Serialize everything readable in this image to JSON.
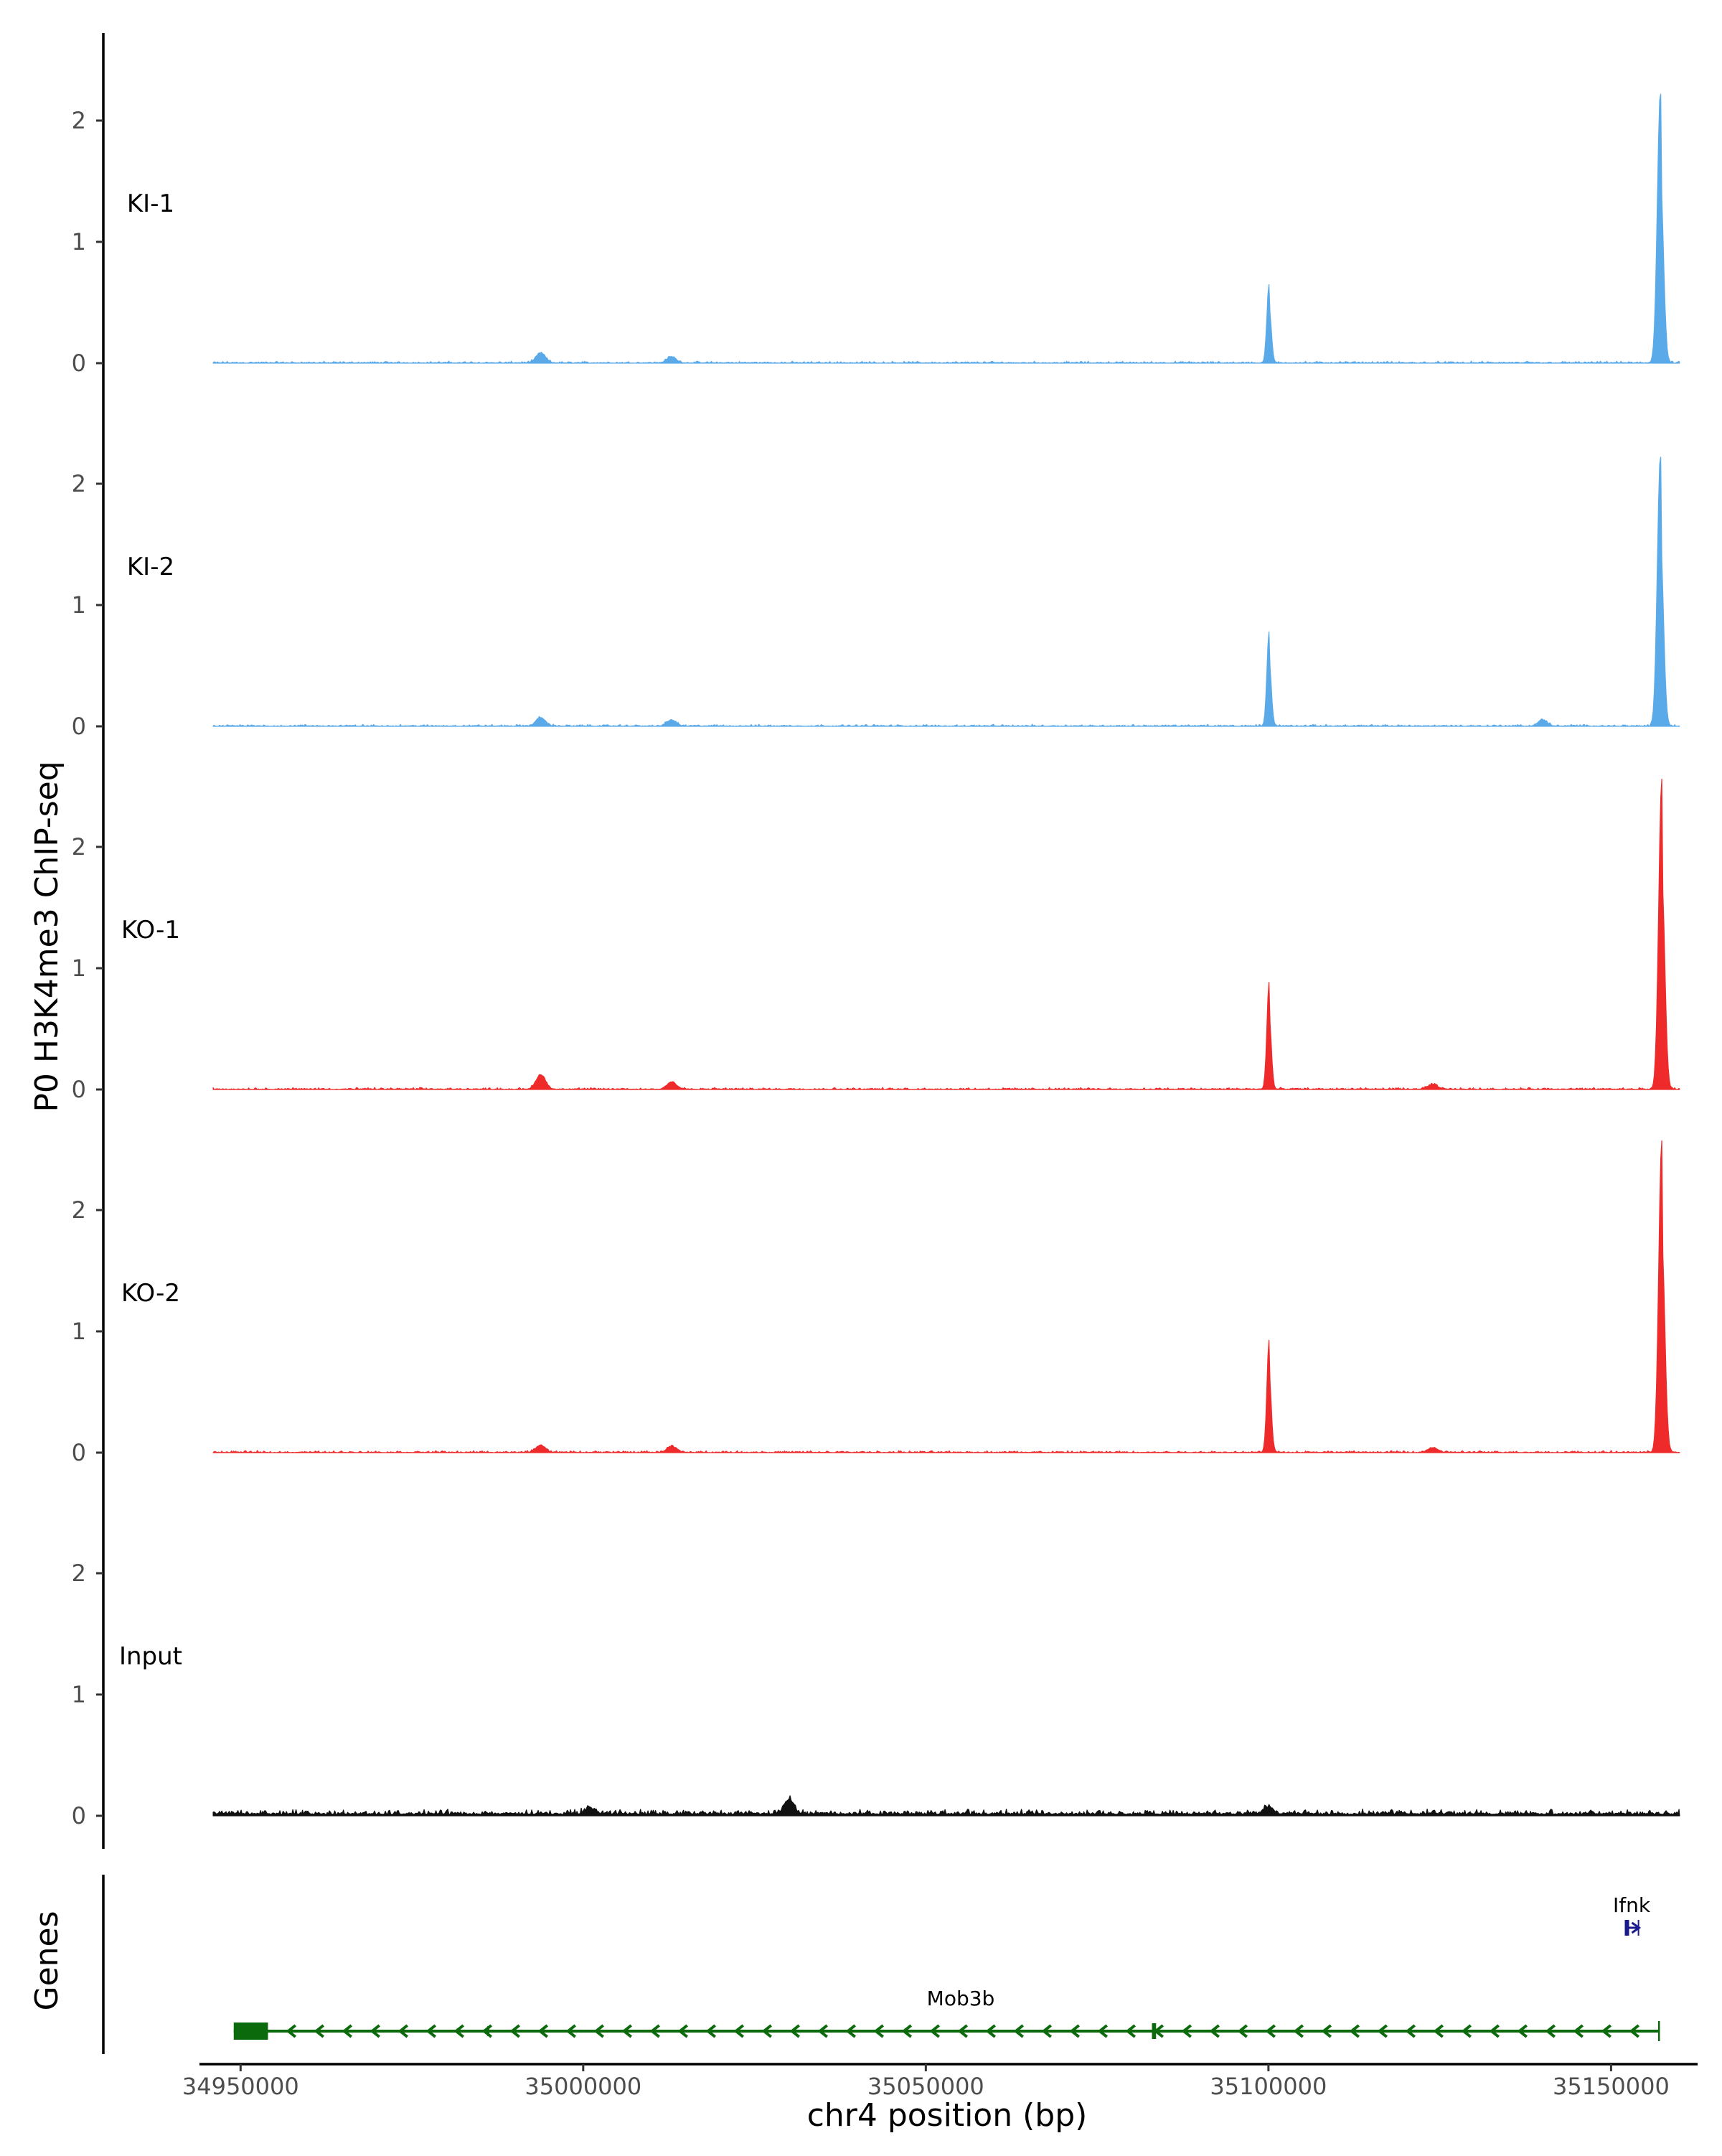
{
  "chart_data": {
    "type": "area",
    "ylabel": "P0 H3K4me3 ChIP-seq",
    "xlabel": "chr4 position (bp)",
    "xlim": [
      34944000,
      35162000
    ],
    "x_ticks": [
      34950000,
      35000000,
      35050000,
      35100000,
      35150000
    ],
    "x_tick_labels": [
      "34950000",
      "35000000",
      "35050000",
      "35100000",
      "35150000"
    ],
    "ylim": [
      0,
      2.7
    ],
    "y_ticks": [
      0,
      1,
      2
    ],
    "y_tick_labels": [
      "0",
      "1",
      "2"
    ],
    "colors": {
      "KI": "#5aaaea",
      "KO": "#ee2a2a",
      "Input": "#111111",
      "gene_mob3b": "#0b6a0b",
      "gene_ifnk": "#1a1a8c"
    },
    "tracks": [
      {
        "name": "KI-1",
        "color": "#5aaaea",
        "region": [
          34946000,
          35160000
        ],
        "peaks": [
          {
            "pos": 35157200,
            "height": 2.23
          },
          {
            "pos": 35100100,
            "height": 0.65
          },
          {
            "pos": 34993800,
            "height": 0.08
          },
          {
            "pos": 35012900,
            "height": 0.05
          }
        ]
      },
      {
        "name": "KI-2",
        "color": "#5aaaea",
        "region": [
          34946000,
          35160000
        ],
        "peaks": [
          {
            "pos": 35157200,
            "height": 2.23
          },
          {
            "pos": 35100100,
            "height": 0.78
          },
          {
            "pos": 34993800,
            "height": 0.07
          },
          {
            "pos": 35012900,
            "height": 0.05
          },
          {
            "pos": 35140000,
            "height": 0.05
          }
        ]
      },
      {
        "name": "KO-1",
        "color": "#ee2a2a",
        "region": [
          34946000,
          35160000
        ],
        "peaks": [
          {
            "pos": 35157400,
            "height": 2.55
          },
          {
            "pos": 35100100,
            "height": 0.88
          },
          {
            "pos": 34993800,
            "height": 0.12
          },
          {
            "pos": 35012900,
            "height": 0.06
          },
          {
            "pos": 35124000,
            "height": 0.04
          }
        ]
      },
      {
        "name": "KO-2",
        "color": "#ee2a2a",
        "region": [
          34946000,
          35160000
        ],
        "peaks": [
          {
            "pos": 35157400,
            "height": 2.57
          },
          {
            "pos": 35100100,
            "height": 0.93
          },
          {
            "pos": 34993800,
            "height": 0.06
          },
          {
            "pos": 35012900,
            "height": 0.05
          },
          {
            "pos": 35124000,
            "height": 0.04
          }
        ]
      },
      {
        "name": "Input",
        "color": "#111111",
        "region": [
          34946000,
          35160000
        ],
        "peaks": [
          {
            "pos": 35030000,
            "height": 0.12
          },
          {
            "pos": 35001000,
            "height": 0.05
          },
          {
            "pos": 35100000,
            "height": 0.06
          }
        ]
      }
    ],
    "genes_track": {
      "label": "Genes",
      "genes": [
        {
          "name": "Mob3b",
          "start": 34949000,
          "end": 35157000,
          "strand": "-",
          "exons": [
            [
              34949000,
              34954000
            ],
            [
              34986000,
              34986300
            ],
            [
              35083000,
              35083600
            ]
          ]
        },
        {
          "name": "Ifnk",
          "start": 35152000,
          "end": 35154000,
          "strand": "+",
          "exons": [
            [
              35152000,
              35152900
            ]
          ]
        }
      ]
    }
  }
}
